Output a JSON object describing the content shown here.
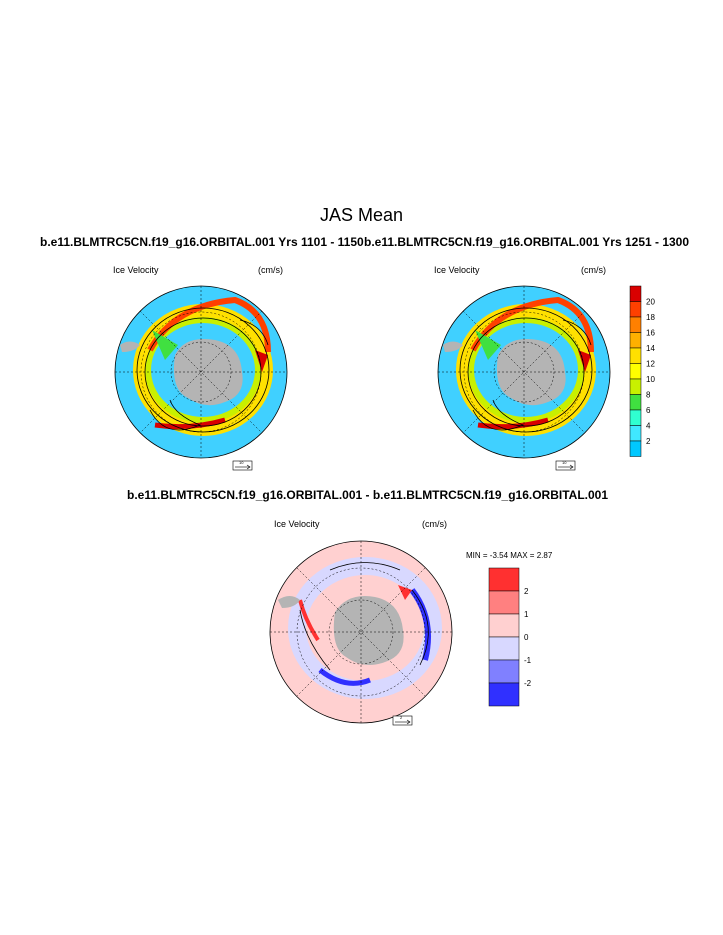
{
  "page": {
    "title": "JAS Mean"
  },
  "panels": [
    {
      "case_title": "b.e11.BLMTRC5CN.f19_g16.ORBITAL.001  Yrs 1101 - 1150",
      "left_label": "Ice Velocity",
      "right_label": "(cm/s)",
      "ref_vector": "10"
    },
    {
      "case_title": "b.e11.BLMTRC5CN.f19_g16.ORBITAL.001  Yrs 1251 - 1300",
      "left_label": "Ice Velocity",
      "right_label": "(cm/s)",
      "ref_vector": "10"
    },
    {
      "case_title": "b.e11.BLMTRC5CN.f19_g16.ORBITAL.001 - b.e11.BLMTRC5CN.f19_g16.ORBITAL.001",
      "left_label": "Ice Velocity",
      "right_label": "(cm/s)",
      "ref_vector": "2",
      "min_max": "MIN =  -3.54 MAX =   2.87"
    }
  ],
  "colorbar_top": {
    "labels": [
      "20",
      "18",
      "16",
      "14",
      "12",
      "10",
      "8",
      "6",
      "4",
      "2"
    ],
    "colors": [
      "#d90000",
      "#ff4000",
      "#ff8000",
      "#ffb000",
      "#ffe000",
      "#ffff00",
      "#c8f000",
      "#40e040",
      "#30ffd0",
      "#40e8ff",
      "#00c8ff"
    ]
  },
  "colorbar_diff": {
    "labels": [
      "2",
      "1",
      "0",
      "-1",
      "-2"
    ],
    "colors": [
      "#ff3030",
      "#ff8080",
      "#ffd0d0",
      "#d8d8ff",
      "#8080ff",
      "#3030ff"
    ]
  },
  "map_colors": {
    "ocean_low": "#40d0ff",
    "land": "#b4b4b4",
    "diff_bg": "#ffd0d0"
  }
}
